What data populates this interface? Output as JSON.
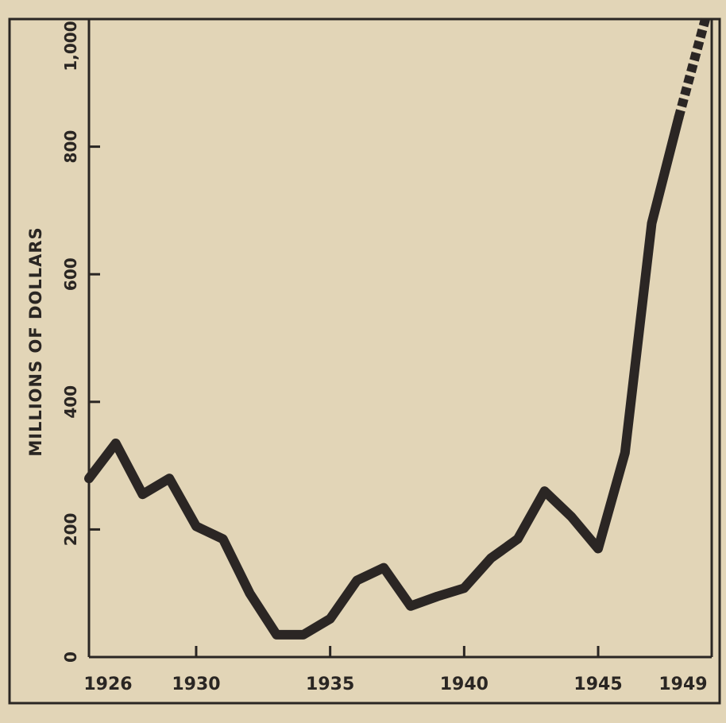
{
  "chart_data": {
    "type": "line",
    "title": "",
    "xlabel": "",
    "ylabel": "MILLIONS OF DOLLARS",
    "xlim": [
      1926,
      1949
    ],
    "ylim": [
      0,
      1000
    ],
    "x_ticks": [
      1926,
      1930,
      1935,
      1940,
      1945,
      1949
    ],
    "x_tick_labels": [
      "1926",
      "1930",
      "1935",
      "1940",
      "1945",
      "1949"
    ],
    "y_ticks": [
      0,
      200,
      400,
      600,
      800,
      1000
    ],
    "y_tick_labels": [
      "0",
      "200",
      "400",
      "600",
      "800",
      "1,000"
    ],
    "grid": false,
    "line_color": "#2b2624",
    "background_color": "#e2d5b7",
    "series": [
      {
        "solid": true,
        "x": [
          1926,
          1927,
          1928,
          1929,
          1930,
          1931,
          1932,
          1933,
          1934,
          1935,
          1936,
          1937,
          1938,
          1939,
          1940,
          1941,
          1942,
          1943,
          1944,
          1945,
          1946,
          1947,
          1948
        ],
        "y": [
          280,
          335,
          255,
          280,
          205,
          185,
          100,
          35,
          35,
          60,
          120,
          140,
          80,
          95,
          108,
          155,
          185,
          260,
          220,
          170,
          320,
          680,
          845
        ]
      },
      {
        "solid": false,
        "x": [
          1948,
          1949
        ],
        "y": [
          845,
          1000
        ]
      }
    ]
  }
}
